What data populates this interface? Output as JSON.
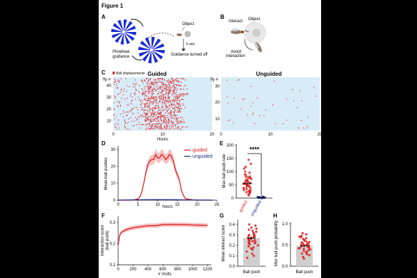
{
  "figure_title": "Figure 1",
  "colors": {
    "guided": "#e02020",
    "guided_shade": "#f4a6a6",
    "unguided": "#1f2a8c",
    "raster_bg": "#d7ecf7",
    "pinwheel": "#1a2bd8",
    "bar_grey": "#cfcfcf"
  },
  "panelA": {
    "letter": "A",
    "labels": {
      "pinwheel": "Pinwheel\nguidance",
      "object": "Object",
      "time": "5 min",
      "off": "Guidance turned off"
    }
  },
  "panelB": {
    "letter": "B",
    "labels": {
      "interact": "Interact",
      "object": "Object",
      "avoid": "Avoid\ninteraction"
    }
  },
  "panelC": {
    "letter": "C",
    "legend": "Ball displacements",
    "guided_title": "Guided",
    "unguided_title": "Unguided",
    "ylabel": "fly #",
    "xlabel": "Hours",
    "guided_yticks": [
      "10",
      "20",
      "30",
      "40"
    ],
    "unguided_yticks": [
      "10",
      "20",
      "30"
    ],
    "xticks": [
      "0",
      "10",
      "20"
    ]
  },
  "panelD": {
    "letter": "D",
    "ylabel": "Mean ball pushes",
    "xlabel": "hours",
    "yticks": [
      "0",
      "10",
      "20",
      "30"
    ],
    "xticks": [
      "0",
      "5",
      "10",
      "15",
      "20",
      "25"
    ],
    "legend": {
      "guided": "guided",
      "unguided": "unguided"
    }
  },
  "panelE": {
    "letter": "E",
    "ylabel": "Max ball push rate",
    "yticks": [
      "0",
      "50",
      "100",
      "150",
      "200"
    ],
    "xticks": [
      "guided",
      "unguided"
    ],
    "sig": "****"
  },
  "panelF": {
    "letter": "F",
    "ylabel": "Interaction score\n(ball push)",
    "xlabel": "# Visits",
    "yticks": [
      "0.1",
      "0.2",
      "0.3"
    ],
    "xticks": [
      "0",
      "200",
      "400",
      "600",
      "800",
      "1000",
      "1200"
    ]
  },
  "panelG": {
    "letter": "G",
    "ylabel": "Mean interact score",
    "xlabel": "Ball push",
    "yticks": [
      "0.0",
      "0.1",
      "0.2",
      "0.3",
      "0.4"
    ]
  },
  "panelH": {
    "letter": "H",
    "ylabel": "Max ball push probability",
    "xlabel": "Ball push",
    "yticks": [
      "0.0",
      "0.5",
      "1.0"
    ]
  },
  "chart_data": [
    {
      "panel": "D",
      "type": "line",
      "xlim": [
        0,
        25
      ],
      "ylim": [
        0,
        32
      ],
      "series": [
        {
          "name": "guided",
          "x": [
            0,
            1,
            2,
            3,
            4,
            5,
            5.5,
            6,
            6.5,
            7,
            7.5,
            8,
            8.5,
            9,
            9.5,
            10,
            10.5,
            11,
            11.5,
            12,
            12.5,
            13,
            13.5,
            14,
            14.5,
            15,
            15.5,
            16,
            16.5,
            17,
            18,
            19,
            20,
            21,
            22,
            23,
            24
          ],
          "y": [
            0,
            0,
            0,
            0,
            0.2,
            0.8,
            2,
            5,
            10,
            16,
            21,
            23,
            24,
            24,
            27,
            25,
            25,
            27,
            26,
            24,
            25,
            27,
            26,
            23,
            18,
            15,
            12,
            6,
            3,
            1,
            0.5,
            0.2,
            0,
            0,
            0,
            0,
            0
          ]
        },
        {
          "name": "unguided",
          "x": [
            0,
            4,
            8,
            12,
            16,
            20,
            24
          ],
          "y": [
            0,
            0.2,
            0.3,
            0.3,
            0.2,
            0.1,
            0
          ]
        }
      ]
    },
    {
      "panel": "E",
      "type": "scatter",
      "ylim": [
        0,
        200
      ],
      "categories": [
        "guided",
        "unguided"
      ],
      "series": [
        {
          "name": "guided",
          "mean": 55,
          "sem": 5,
          "values": [
            145,
            130,
            118,
            112,
            100,
            96,
            90,
            86,
            82,
            80,
            78,
            76,
            72,
            70,
            68,
            66,
            64,
            62,
            60,
            58,
            56,
            55,
            54,
            52,
            50,
            48,
            46,
            45,
            44,
            42,
            40,
            38,
            36,
            34,
            32,
            30,
            28,
            26,
            24,
            22,
            20,
            18,
            14,
            10
          ]
        },
        {
          "name": "unguided",
          "mean": 3,
          "sem": 0.5,
          "values": [
            5,
            4,
            4,
            3,
            3,
            3,
            2,
            2,
            2,
            1,
            1,
            1,
            0,
            0
          ]
        }
      ]
    },
    {
      "panel": "F",
      "type": "line",
      "xlim": [
        0,
        1250
      ],
      "ylim": [
        0.1,
        0.33
      ],
      "series": [
        {
          "name": "ball push",
          "x": [
            0,
            10,
            25,
            50,
            75,
            100,
            150,
            200,
            300,
            400,
            500,
            600,
            700,
            800,
            900,
            1000,
            1100,
            1200
          ],
          "y": [
            0.19,
            0.22,
            0.245,
            0.255,
            0.26,
            0.265,
            0.27,
            0.275,
            0.28,
            0.285,
            0.285,
            0.29,
            0.29,
            0.29,
            0.29,
            0.288,
            0.287,
            0.286
          ]
        }
      ]
    },
    {
      "panel": "G",
      "type": "scatter",
      "ylim": [
        0,
        0.42
      ],
      "categories": [
        "Ball push"
      ],
      "series": [
        {
          "name": "Ball push",
          "mean": 0.27,
          "sem": 0.015,
          "values": [
            0.4,
            0.39,
            0.37,
            0.36,
            0.35,
            0.34,
            0.33,
            0.32,
            0.31,
            0.3,
            0.3,
            0.29,
            0.29,
            0.28,
            0.28,
            0.27,
            0.27,
            0.26,
            0.26,
            0.25,
            0.25,
            0.24,
            0.24,
            0.23,
            0.23,
            0.22,
            0.22,
            0.21,
            0.2,
            0.19,
            0.18,
            0.17,
            0.16,
            0.14,
            0.12,
            0.1,
            0.08
          ]
        }
      ]
    },
    {
      "panel": "H",
      "type": "scatter",
      "ylim": [
        0,
        1.0
      ],
      "categories": [
        "Ball push"
      ],
      "series": [
        {
          "name": "Ball push",
          "mean": 0.48,
          "sem": 0.03,
          "values": [
            0.78,
            0.75,
            0.72,
            0.7,
            0.68,
            0.66,
            0.64,
            0.62,
            0.6,
            0.58,
            0.57,
            0.56,
            0.55,
            0.54,
            0.53,
            0.52,
            0.51,
            0.5,
            0.49,
            0.48,
            0.47,
            0.46,
            0.45,
            0.44,
            0.43,
            0.42,
            0.41,
            0.4,
            0.38,
            0.36,
            0.34,
            0.32,
            0.3,
            0.28,
            0.26,
            0.22,
            0.18
          ]
        }
      ]
    }
  ]
}
